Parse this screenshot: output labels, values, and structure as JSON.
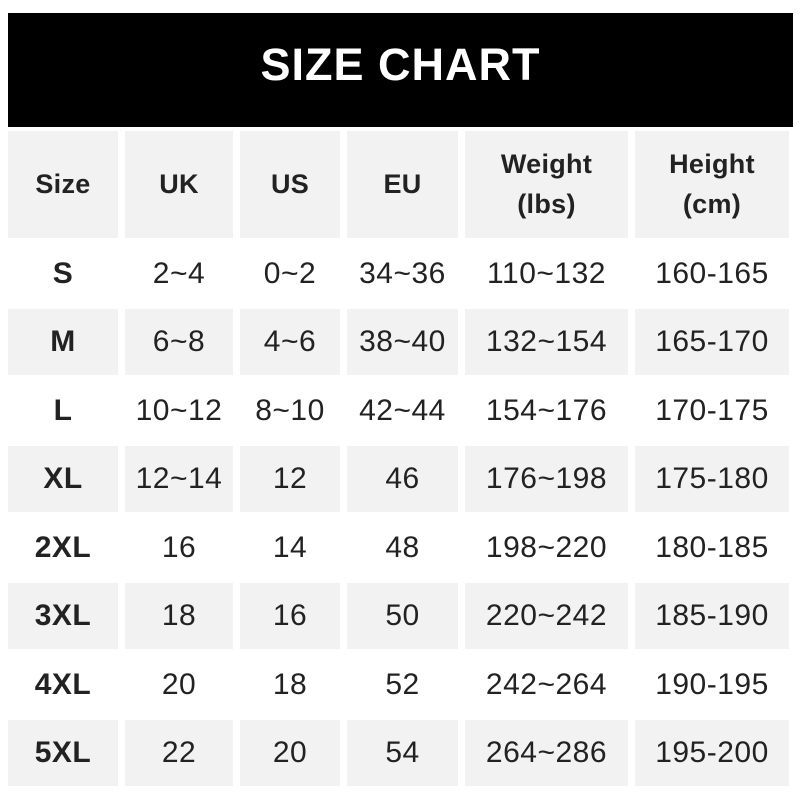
{
  "title": "SIZE CHART",
  "theme": {
    "title_bg": "#000000",
    "title_color": "#ffffff",
    "band_bg": "#f2f2f2",
    "text_color": "#222222"
  },
  "table": {
    "headers": [
      {
        "label": "Size"
      },
      {
        "label": "UK"
      },
      {
        "label": "US"
      },
      {
        "label": "EU"
      },
      {
        "label": "Weight",
        "sub": "(lbs)"
      },
      {
        "label": "Height",
        "sub": "(cm)"
      }
    ]
  },
  "chart_data": {
    "type": "table",
    "title": "SIZE CHART",
    "columns": [
      "Size",
      "UK",
      "US",
      "EU",
      "Weight (lbs)",
      "Height (cm)"
    ],
    "rows": [
      [
        "S",
        "2~4",
        "0~2",
        "34~36",
        "110~132",
        "160-165"
      ],
      [
        "M",
        "6~8",
        "4~6",
        "38~40",
        "132~154",
        "165-170"
      ],
      [
        "L",
        "10~12",
        "8~10",
        "42~44",
        "154~176",
        "170-175"
      ],
      [
        "XL",
        "12~14",
        "12",
        "46",
        "176~198",
        "175-180"
      ],
      [
        "2XL",
        "16",
        "14",
        "48",
        "198~220",
        "180-185"
      ],
      [
        "3XL",
        "18",
        "16",
        "50",
        "220~242",
        "185-190"
      ],
      [
        "4XL",
        "20",
        "18",
        "52",
        "242~264",
        "190-195"
      ],
      [
        "5XL",
        "22",
        "20",
        "54",
        "264~286",
        "195-200"
      ]
    ]
  }
}
